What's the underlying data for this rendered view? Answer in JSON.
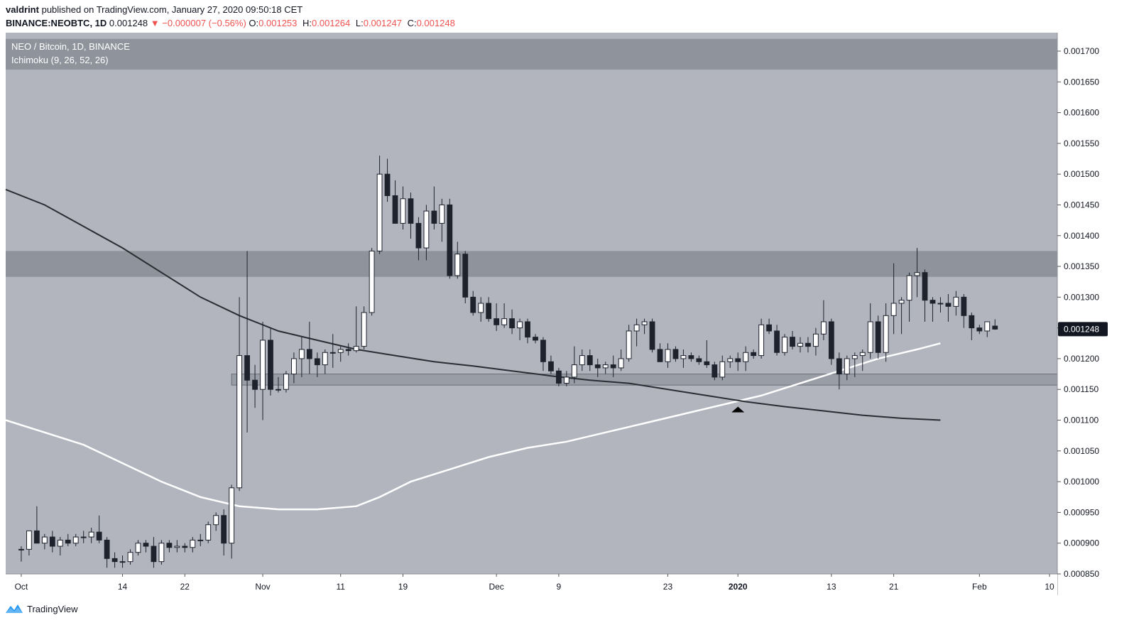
{
  "header": {
    "author": "valdrint",
    "published_text": "published on TradingView.com, January 27, 2020 09:50:18 CET"
  },
  "ohlc": {
    "symbol": "BINANCE:NEOBTC, 1D",
    "last": "0.001248",
    "change": "▼ −0.000007 (−0.56%)",
    "open_label": "O:",
    "open": "0.001253",
    "high_label": "H:",
    "high": "0.001264",
    "low_label": "L:",
    "low": "0.001247",
    "close_label": "C:",
    "close": "0.001248"
  },
  "legend": {
    "title": "NEO / Bitcoin, 1D, BINANCE",
    "indicator": "Ichimoku (9, 26, 52, 26)"
  },
  "price_label": "0.001248",
  "footer": {
    "brand": "TradingView",
    "logo_icon": "tradingview-logo-icon"
  },
  "colors": {
    "background": "#b2b5be",
    "zone": "#8f939b",
    "up_candle": "#ffffff",
    "down_candle": "#1e222d",
    "ma_white": "#ffffff",
    "ma_dark": "#2a2d34"
  },
  "chart_data": {
    "type": "candlestick",
    "x_tick_labels": [
      {
        "label": "Oct",
        "day": 0
      },
      {
        "label": "14",
        "day": 13
      },
      {
        "label": "22",
        "day": 21
      },
      {
        "label": "Nov",
        "day": 31
      },
      {
        "label": "11",
        "day": 41
      },
      {
        "label": "19",
        "day": 49
      },
      {
        "label": "Dec",
        "day": 61
      },
      {
        "label": "9",
        "day": 69
      },
      {
        "label": "23",
        "day": 83
      },
      {
        "label": "2020",
        "day": 92
      },
      {
        "label": "13",
        "day": 104
      },
      {
        "label": "21",
        "day": 112
      },
      {
        "label": "Feb",
        "day": 123
      },
      {
        "label": "10",
        "day": 132
      }
    ],
    "y_tick_labels": [
      "0.001700",
      "0.001650",
      "0.001600",
      "0.001550",
      "0.001500",
      "0.001450",
      "0.001400",
      "0.001350",
      "0.001300",
      "0.001250",
      "0.001200",
      "0.001150",
      "0.001100",
      "0.001050",
      "0.001000",
      "0.000950",
      "0.000900",
      "0.000850"
    ],
    "y_range": [
      0.00085,
      0.00173
    ],
    "x_range_days": [
      -2,
      133
    ],
    "zones": [
      {
        "low": 0.00167,
        "high": 0.00172
      },
      {
        "low": 0.001333,
        "high": 0.001375
      },
      {
        "low": 0.001157,
        "high": 0.001175,
        "start_day": 27
      }
    ],
    "marker": {
      "type": "triangle-up",
      "day": 92,
      "price": 0.001122
    },
    "candles": [
      [
        0.00089,
        0.000895,
        0.00087,
        0.00089
      ],
      [
        0.00089,
        0.00092,
        0.00088,
        0.00092
      ],
      [
        0.00092,
        0.00096,
        0.0009,
        0.0009
      ],
      [
        0.0009,
        0.000915,
        0.00089,
        0.00091
      ],
      [
        0.00091,
        0.00092,
        0.000885,
        0.000895
      ],
      [
        0.000895,
        0.00091,
        0.00088,
        0.000905
      ],
      [
        0.000905,
        0.000915,
        0.000895,
        0.0009
      ],
      [
        0.0009,
        0.000915,
        0.000895,
        0.00091
      ],
      [
        0.00091,
        0.00092,
        0.0009,
        0.00091
      ],
      [
        0.00091,
        0.000925,
        0.0009,
        0.000918
      ],
      [
        0.000918,
        0.000945,
        0.0009,
        0.000905
      ],
      [
        0.000905,
        0.00091,
        0.00086,
        0.000875
      ],
      [
        0.000875,
        0.000885,
        0.00086,
        0.00087
      ],
      [
        0.00087,
        0.00088,
        0.00086,
        0.00087
      ],
      [
        0.00087,
        0.00089,
        0.000865,
        0.000885
      ],
      [
        0.000885,
        0.000905,
        0.00088,
        0.0009
      ],
      [
        0.0009,
        0.000905,
        0.000885,
        0.000895
      ],
      [
        0.000895,
        0.00091,
        0.00086,
        0.00087
      ],
      [
        0.00087,
        0.000905,
        0.000865,
        0.0009
      ],
      [
        0.0009,
        0.000905,
        0.000885,
        0.000893
      ],
      [
        0.000893,
        0.000905,
        0.000885,
        0.000895
      ],
      [
        0.000895,
        0.0009,
        0.000885,
        0.000893
      ],
      [
        0.000893,
        0.00091,
        0.000885,
        0.000905
      ],
      [
        0.000905,
        0.000915,
        0.000895,
        0.000905
      ],
      [
        0.000905,
        0.000935,
        0.0009,
        0.00093
      ],
      [
        0.00093,
        0.00095,
        0.00092,
        0.000945
      ],
      [
        0.000945,
        0.000955,
        0.00088,
        0.0009
      ],
      [
        0.0009,
        0.000995,
        0.000875,
        0.00099
      ],
      [
        0.00099,
        0.0013,
        0.000985,
        0.001205
      ],
      [
        0.001205,
        0.001375,
        0.00108,
        0.001165
      ],
      [
        0.001165,
        0.00119,
        0.00112,
        0.00115
      ],
      [
        0.00115,
        0.00126,
        0.0011,
        0.00123
      ],
      [
        0.00123,
        0.00125,
        0.00114,
        0.00115
      ],
      [
        0.00115,
        0.00117,
        0.001145,
        0.00115
      ],
      [
        0.00115,
        0.00118,
        0.001145,
        0.001175
      ],
      [
        0.001175,
        0.00121,
        0.00116,
        0.0012
      ],
      [
        0.0012,
        0.001235,
        0.00117,
        0.001215
      ],
      [
        0.001215,
        0.00126,
        0.001175,
        0.0012
      ],
      [
        0.0012,
        0.00121,
        0.00117,
        0.00119
      ],
      [
        0.00119,
        0.001215,
        0.001175,
        0.00121
      ],
      [
        0.00121,
        0.00124,
        0.001185,
        0.00121
      ],
      [
        0.00121,
        0.00122,
        0.001195,
        0.001215
      ],
      [
        0.001215,
        0.001225,
        0.001205,
        0.001213
      ],
      [
        0.001213,
        0.001285,
        0.00121,
        0.00122
      ],
      [
        0.00122,
        0.001285,
        0.001215,
        0.001275
      ],
      [
        0.001275,
        0.00138,
        0.00127,
        0.001375
      ],
      [
        0.001375,
        0.00153,
        0.00137,
        0.0015
      ],
      [
        0.0015,
        0.001525,
        0.001455,
        0.001465
      ],
      [
        0.001465,
        0.00149,
        0.00142,
        0.00142
      ],
      [
        0.00142,
        0.00148,
        0.00141,
        0.00146
      ],
      [
        0.00146,
        0.00147,
        0.001395,
        0.00142
      ],
      [
        0.00142,
        0.00143,
        0.00136,
        0.00138
      ],
      [
        0.00138,
        0.00145,
        0.00136,
        0.00144
      ],
      [
        0.00144,
        0.00148,
        0.00141,
        0.00142
      ],
      [
        0.00142,
        0.00146,
        0.00139,
        0.00145
      ],
      [
        0.00145,
        0.00146,
        0.00133,
        0.001335
      ],
      [
        0.001335,
        0.00139,
        0.00133,
        0.00137
      ],
      [
        0.00137,
        0.001375,
        0.00129,
        0.0013
      ],
      [
        0.0013,
        0.00131,
        0.00127,
        0.001275
      ],
      [
        0.001275,
        0.0013,
        0.00126,
        0.00129
      ],
      [
        0.00129,
        0.0013,
        0.00126,
        0.001265
      ],
      [
        0.001265,
        0.00129,
        0.001245,
        0.001255
      ],
      [
        0.001255,
        0.00129,
        0.00125,
        0.001265
      ],
      [
        0.001265,
        0.00128,
        0.00124,
        0.00125
      ],
      [
        0.00125,
        0.001265,
        0.00123,
        0.00126
      ],
      [
        0.00126,
        0.001265,
        0.001225,
        0.001235
      ],
      [
        0.001235,
        0.00124,
        0.001225,
        0.00123
      ],
      [
        0.00123,
        0.001235,
        0.00118,
        0.001195
      ],
      [
        0.001195,
        0.001205,
        0.001175,
        0.00118
      ],
      [
        0.00118,
        0.001185,
        0.001155,
        0.00116
      ],
      [
        0.00116,
        0.00118,
        0.001155,
        0.00117
      ],
      [
        0.00117,
        0.00122,
        0.00116,
        0.00119
      ],
      [
        0.00119,
        0.001215,
        0.00118,
        0.001205
      ],
      [
        0.001205,
        0.001215,
        0.00118,
        0.00119
      ],
      [
        0.00119,
        0.0012,
        0.00117,
        0.001185
      ],
      [
        0.001185,
        0.001195,
        0.001175,
        0.00119
      ],
      [
        0.00119,
        0.001205,
        0.00117,
        0.001185
      ],
      [
        0.001185,
        0.001215,
        0.00118,
        0.0012
      ],
      [
        0.0012,
        0.001255,
        0.001195,
        0.001245
      ],
      [
        0.001245,
        0.001265,
        0.00122,
        0.001255
      ],
      [
        0.001255,
        0.001265,
        0.00124,
        0.00126
      ],
      [
        0.00126,
        0.001265,
        0.00121,
        0.001215
      ],
      [
        0.001215,
        0.001225,
        0.001195,
        0.001195
      ],
      [
        0.001195,
        0.001225,
        0.001185,
        0.001215
      ],
      [
        0.001215,
        0.00122,
        0.001195,
        0.0012
      ],
      [
        0.0012,
        0.001215,
        0.001185,
        0.001205
      ],
      [
        0.001205,
        0.00121,
        0.001195,
        0.0012
      ],
      [
        0.0012,
        0.001205,
        0.00119,
        0.001195
      ],
      [
        0.001195,
        0.00123,
        0.001185,
        0.00119
      ],
      [
        0.00119,
        0.001195,
        0.001165,
        0.00117
      ],
      [
        0.00117,
        0.001205,
        0.001165,
        0.001195
      ],
      [
        0.001195,
        0.001205,
        0.001185,
        0.0012
      ],
      [
        0.0012,
        0.00121,
        0.00118,
        0.001195
      ],
      [
        0.001195,
        0.00122,
        0.00118,
        0.00121
      ],
      [
        0.00121,
        0.001215,
        0.0012,
        0.001205
      ],
      [
        0.001205,
        0.001265,
        0.0012,
        0.001255
      ],
      [
        0.001255,
        0.001265,
        0.00124,
        0.001245
      ],
      [
        0.001245,
        0.001255,
        0.001205,
        0.00121
      ],
      [
        0.00121,
        0.00124,
        0.001205,
        0.001235
      ],
      [
        0.001235,
        0.001245,
        0.001215,
        0.00122
      ],
      [
        0.00122,
        0.001235,
        0.00121,
        0.001225
      ],
      [
        0.001225,
        0.001235,
        0.00121,
        0.00122
      ],
      [
        0.00122,
        0.00125,
        0.001205,
        0.00124
      ],
      [
        0.00124,
        0.001295,
        0.00123,
        0.00126
      ],
      [
        0.00126,
        0.001265,
        0.00119,
        0.0012
      ],
      [
        0.0012,
        0.00121,
        0.00115,
        0.001175
      ],
      [
        0.001175,
        0.001205,
        0.001165,
        0.0012
      ],
      [
        0.0012,
        0.00121,
        0.00117,
        0.001205
      ],
      [
        0.001205,
        0.001215,
        0.00118,
        0.00121
      ],
      [
        0.00121,
        0.00129,
        0.0012,
        0.00126
      ],
      [
        0.00126,
        0.00127,
        0.0012,
        0.00121
      ],
      [
        0.00121,
        0.00129,
        0.001195,
        0.00127
      ],
      [
        0.00127,
        0.001355,
        0.00124,
        0.00129
      ],
      [
        0.00129,
        0.0013,
        0.00124,
        0.001295
      ],
      [
        0.001295,
        0.00134,
        0.00126,
        0.001335
      ],
      [
        0.001335,
        0.00138,
        0.0013,
        0.00134
      ],
      [
        0.00134,
        0.001345,
        0.00126,
        0.001295
      ],
      [
        0.001295,
        0.0013,
        0.00126,
        0.00129
      ],
      [
        0.00129,
        0.0013,
        0.001275,
        0.00129
      ],
      [
        0.00129,
        0.001305,
        0.00126,
        0.001285
      ],
      [
        0.001285,
        0.00131,
        0.00127,
        0.0013
      ],
      [
        0.0013,
        0.001305,
        0.00125,
        0.00127
      ],
      [
        0.00127,
        0.001275,
        0.00123,
        0.00125
      ],
      [
        0.00125,
        0.001255,
        0.00124,
        0.001245
      ],
      [
        0.001245,
        0.00126,
        0.001235,
        0.00126
      ],
      [
        0.001253,
        0.001264,
        0.001247,
        0.001248
      ]
    ],
    "moving_averages": [
      {
        "color": "#ffffff",
        "points": [
          [
            -2,
            0.0011
          ],
          [
            3,
            0.00108
          ],
          [
            8,
            0.00106
          ],
          [
            13,
            0.00103
          ],
          [
            18,
            0.001
          ],
          [
            23,
            0.000975
          ],
          [
            28,
            0.00096
          ],
          [
            33,
            0.000955
          ],
          [
            38,
            0.000955
          ],
          [
            43,
            0.00096
          ],
          [
            46,
            0.000975
          ],
          [
            50,
            0.001
          ],
          [
            55,
            0.00102
          ],
          [
            60,
            0.00104
          ],
          [
            65,
            0.001055
          ],
          [
            70,
            0.001065
          ],
          [
            75,
            0.00108
          ],
          [
            80,
            0.001095
          ],
          [
            85,
            0.00111
          ],
          [
            90,
            0.001125
          ],
          [
            95,
            0.00114
          ],
          [
            100,
            0.00116
          ],
          [
            105,
            0.00118
          ],
          [
            110,
            0.0012
          ],
          [
            115,
            0.001215
          ],
          [
            118,
            0.001225
          ]
        ]
      },
      {
        "color": "#2a2d34",
        "points": [
          [
            -2,
            0.001475
          ],
          [
            3,
            0.00145
          ],
          [
            8,
            0.001415
          ],
          [
            13,
            0.00138
          ],
          [
            18,
            0.00134
          ],
          [
            23,
            0.0013
          ],
          [
            28,
            0.00127
          ],
          [
            33,
            0.001245
          ],
          [
            38,
            0.00123
          ],
          [
            43,
            0.001215
          ],
          [
            48,
            0.001205
          ],
          [
            53,
            0.001195
          ],
          [
            58,
            0.001188
          ],
          [
            63,
            0.00118
          ],
          [
            68,
            0.001172
          ],
          [
            73,
            0.001165
          ],
          [
            78,
            0.00116
          ],
          [
            83,
            0.00115
          ],
          [
            88,
            0.00114
          ],
          [
            93,
            0.00113
          ],
          [
            98,
            0.001122
          ],
          [
            103,
            0.001115
          ],
          [
            108,
            0.001108
          ],
          [
            113,
            0.001103
          ],
          [
            118,
            0.0011
          ]
        ]
      }
    ]
  }
}
